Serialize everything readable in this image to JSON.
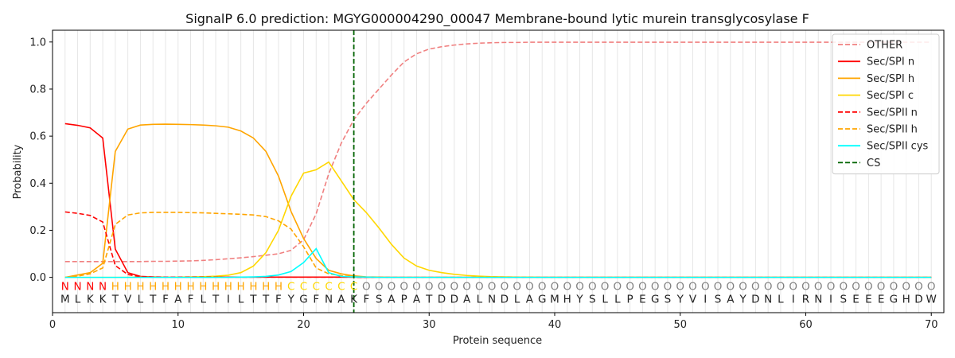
{
  "chart_data": {
    "type": "line",
    "title": "SignalP 6.0 prediction: MGYG000004290_00047 Membrane-bound lytic murein transglycosylase F",
    "xlabel": "Protein sequence",
    "ylabel": "Probability",
    "xlim": [
      0,
      71
    ],
    "ylim": [
      -0.15,
      1.05
    ],
    "x_ticks": [
      0,
      10,
      20,
      30,
      40,
      50,
      60,
      70
    ],
    "y_ticks": [
      0.0,
      0.2,
      0.4,
      0.6,
      0.8,
      1.0
    ],
    "x_tick_labels": [
      "0",
      "10",
      "20",
      "30",
      "40",
      "50",
      "60",
      "70"
    ],
    "y_tick_labels": [
      "0.0",
      "0.2",
      "0.4",
      "0.6",
      "0.8",
      "1.0"
    ],
    "grid": "vertical",
    "legend_position": "top-right",
    "cs_position": 24,
    "sequence": [
      "M",
      "L",
      "K",
      "K",
      "T",
      "V",
      "L",
      "T",
      "F",
      "A",
      "F",
      "L",
      "T",
      "I",
      "L",
      "T",
      "T",
      "F",
      "Y",
      "G",
      "F",
      "N",
      "A",
      "K",
      "F",
      "S",
      "A",
      "P",
      "A",
      "T",
      "D",
      "D",
      "A",
      "L",
      "N",
      "D",
      "L",
      "A",
      "G",
      "M",
      "H",
      "Y",
      "S",
      "L",
      "L",
      "P",
      "E",
      "G",
      "S",
      "Y",
      "V",
      "I",
      "S",
      "A",
      "Y",
      "D",
      "N",
      "L",
      "I",
      "R",
      "N",
      "I",
      "S",
      "E",
      "E",
      "E",
      "G",
      "H",
      "D",
      "W"
    ],
    "region_labels": [
      "N",
      "N",
      "N",
      "N",
      "H",
      "H",
      "H",
      "H",
      "H",
      "H",
      "H",
      "H",
      "H",
      "H",
      "H",
      "H",
      "H",
      "H",
      "C",
      "C",
      "C",
      "C",
      "C",
      "C",
      "O",
      "O",
      "O",
      "O",
      "O",
      "O",
      "O",
      "O",
      "O",
      "O",
      "O",
      "O",
      "O",
      "O",
      "O",
      "O",
      "O",
      "O",
      "O",
      "O",
      "O",
      "O",
      "O",
      "O",
      "O",
      "O",
      "O",
      "O",
      "O",
      "O",
      "O",
      "O",
      "O",
      "O",
      "O",
      "O",
      "O",
      "O",
      "O",
      "O",
      "O",
      "O",
      "O",
      "O",
      "O",
      "O"
    ],
    "region_colors": {
      "N": "#ff0000",
      "H": "#ffa500",
      "C": "#ffd700",
      "O": "#808080"
    },
    "series": [
      {
        "name": "OTHER",
        "color": "#f08080",
        "dash": "dashed",
        "values": [
          0.067,
          0.067,
          0.067,
          0.067,
          0.067,
          0.067,
          0.067,
          0.068,
          0.068,
          0.069,
          0.07,
          0.072,
          0.075,
          0.079,
          0.083,
          0.088,
          0.094,
          0.1,
          0.115,
          0.16,
          0.27,
          0.44,
          0.57,
          0.67,
          0.74,
          0.8,
          0.86,
          0.915,
          0.95,
          0.97,
          0.98,
          0.987,
          0.992,
          0.995,
          0.997,
          0.998,
          0.998,
          0.999,
          0.999,
          0.999,
          0.999,
          0.999,
          0.999,
          0.999,
          0.999,
          0.999,
          0.999,
          0.999,
          0.999,
          0.999,
          0.999,
          0.999,
          0.999,
          0.999,
          0.999,
          0.999,
          0.999,
          0.999,
          0.999,
          0.999,
          0.999,
          0.999,
          0.999,
          0.999,
          0.999,
          0.999,
          0.999,
          0.999,
          0.999,
          0.999
        ]
      },
      {
        "name": "Sec/SPI n",
        "color": "#ff0000",
        "dash": "solid",
        "values": [
          0.653,
          0.646,
          0.635,
          0.592,
          0.12,
          0.02,
          0.004,
          0.002,
          0.001,
          0.001,
          0.001,
          0.001,
          0.001,
          0.001,
          0.001,
          0.001,
          0.001,
          0.001,
          0.001,
          0.001,
          0.001,
          0.001,
          0.001,
          0.001,
          0,
          0,
          0,
          0,
          0,
          0,
          0,
          0,
          0,
          0,
          0,
          0,
          0,
          0,
          0,
          0,
          0,
          0,
          0,
          0,
          0,
          0,
          0,
          0,
          0,
          0,
          0,
          0,
          0,
          0,
          0,
          0,
          0,
          0,
          0,
          0,
          0,
          0,
          0,
          0,
          0,
          0,
          0,
          0,
          0,
          0
        ]
      },
      {
        "name": "Sec/SPI h",
        "color": "#ffa500",
        "dash": "solid",
        "values": [
          0.0,
          0.01,
          0.02,
          0.06,
          0.535,
          0.63,
          0.647,
          0.65,
          0.651,
          0.65,
          0.649,
          0.647,
          0.644,
          0.638,
          0.622,
          0.592,
          0.535,
          0.43,
          0.28,
          0.165,
          0.08,
          0.03,
          0.015,
          0.006,
          0.002,
          0.001,
          0,
          0,
          0,
          0,
          0,
          0,
          0,
          0,
          0,
          0,
          0,
          0,
          0,
          0,
          0,
          0,
          0,
          0,
          0,
          0,
          0,
          0,
          0,
          0,
          0,
          0,
          0,
          0,
          0,
          0,
          0,
          0,
          0,
          0,
          0,
          0,
          0,
          0,
          0,
          0,
          0,
          0,
          0,
          0
        ]
      },
      {
        "name": "Sec/SPI c",
        "color": "#ffd700",
        "dash": "solid",
        "values": [
          0,
          0,
          0,
          0,
          0,
          0,
          0.001,
          0.001,
          0.001,
          0.001,
          0.002,
          0.003,
          0.005,
          0.009,
          0.02,
          0.048,
          0.105,
          0.2,
          0.345,
          0.443,
          0.457,
          0.49,
          0.41,
          0.33,
          0.275,
          0.21,
          0.14,
          0.082,
          0.048,
          0.03,
          0.02,
          0.013,
          0.008,
          0.005,
          0.003,
          0.002,
          0.001,
          0.001,
          0,
          0,
          0,
          0,
          0,
          0,
          0,
          0,
          0,
          0,
          0,
          0,
          0,
          0,
          0,
          0,
          0,
          0,
          0,
          0,
          0,
          0,
          0,
          0,
          0,
          0,
          0,
          0,
          0,
          0,
          0,
          0
        ]
      },
      {
        "name": "Sec/SPII n",
        "color": "#ff0000",
        "dash": "dashed",
        "values": [
          0.278,
          0.272,
          0.263,
          0.235,
          0.05,
          0.012,
          0.003,
          0.001,
          0.001,
          0.001,
          0.001,
          0.001,
          0.001,
          0.001,
          0.001,
          0.001,
          0.001,
          0.001,
          0.001,
          0.001,
          0.001,
          0.001,
          0.001,
          0.001,
          0,
          0,
          0,
          0,
          0,
          0,
          0,
          0,
          0,
          0,
          0,
          0,
          0,
          0,
          0,
          0,
          0,
          0,
          0,
          0,
          0,
          0,
          0,
          0,
          0,
          0,
          0,
          0,
          0,
          0,
          0,
          0,
          0,
          0,
          0,
          0,
          0,
          0,
          0,
          0,
          0,
          0,
          0,
          0,
          0,
          0
        ]
      },
      {
        "name": "Sec/SPII h",
        "color": "#ffa500",
        "dash": "dashed",
        "values": [
          0.0,
          0.005,
          0.015,
          0.04,
          0.225,
          0.265,
          0.274,
          0.276,
          0.276,
          0.276,
          0.275,
          0.274,
          0.272,
          0.27,
          0.268,
          0.265,
          0.258,
          0.24,
          0.205,
          0.13,
          0.04,
          0.015,
          0.007,
          0.003,
          0.001,
          0,
          0,
          0,
          0,
          0,
          0,
          0,
          0,
          0,
          0,
          0,
          0,
          0,
          0,
          0,
          0,
          0,
          0,
          0,
          0,
          0,
          0,
          0,
          0,
          0,
          0,
          0,
          0,
          0,
          0,
          0,
          0,
          0,
          0,
          0,
          0,
          0,
          0,
          0,
          0,
          0,
          0,
          0,
          0,
          0
        ]
      },
      {
        "name": "Sec/SPII cys",
        "color": "#00ffff",
        "dash": "solid",
        "values": [
          0,
          0,
          0,
          0,
          0,
          0,
          0,
          0,
          0,
          0,
          0,
          0,
          0,
          0,
          0.001,
          0.002,
          0.004,
          0.01,
          0.025,
          0.063,
          0.122,
          0.02,
          0.004,
          0.002,
          0.001,
          0,
          0,
          0,
          0,
          0,
          0,
          0,
          0,
          0,
          0,
          0,
          0,
          0,
          0,
          0,
          0,
          0,
          0,
          0,
          0,
          0,
          0,
          0,
          0,
          0,
          0,
          0,
          0,
          0,
          0,
          0,
          0,
          0,
          0,
          0,
          0,
          0,
          0,
          0,
          0,
          0,
          0,
          0,
          0,
          0
        ]
      }
    ],
    "cs_series": {
      "name": "CS",
      "color": "#006400",
      "dash": "dashed"
    }
  }
}
